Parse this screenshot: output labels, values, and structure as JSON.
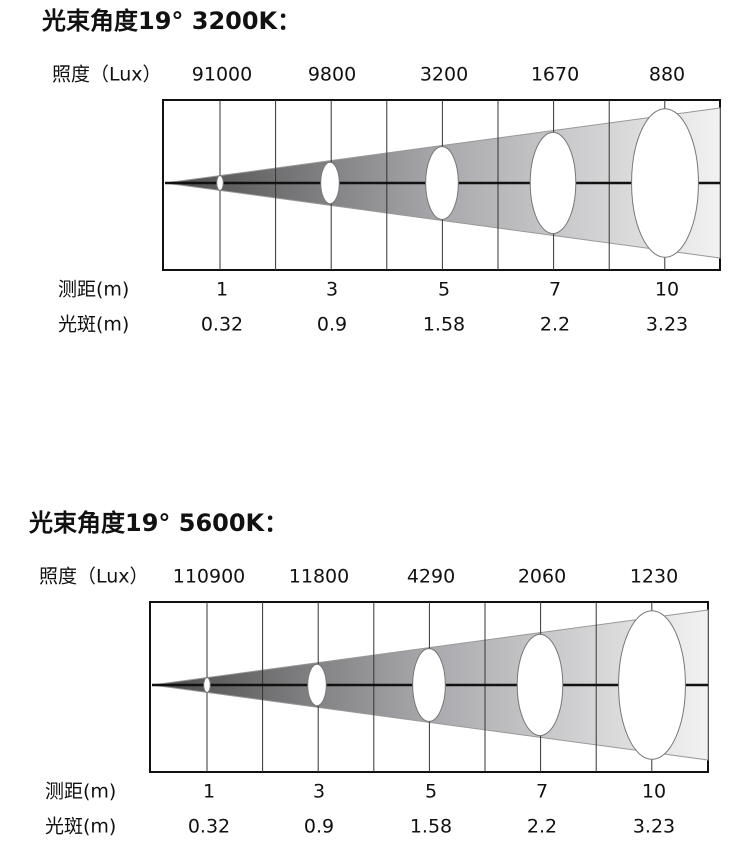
{
  "panels": [
    {
      "title": "光束角度19°  3200K：",
      "lux_label": "照度（Lux）",
      "lux": [
        91000,
        9800,
        3200,
        1670,
        880
      ],
      "distance_label": "测距(m)",
      "distances": [
        1,
        3,
        5,
        7,
        10
      ],
      "spot_label": "光斑(m)",
      "spots": [
        0.32,
        0.9,
        1.58,
        2.2,
        3.23
      ]
    },
    {
      "title": "光束角度19°  5600K：",
      "lux_label": "照度（Lux）",
      "lux": [
        110900,
        11800,
        4290,
        2060,
        1230
      ],
      "distance_label": "测距(m)",
      "distances": [
        1,
        3,
        5,
        7,
        10
      ],
      "spot_label": "光斑(m)",
      "spots": [
        0.32,
        0.9,
        1.58,
        2.2,
        3.23
      ]
    }
  ]
}
